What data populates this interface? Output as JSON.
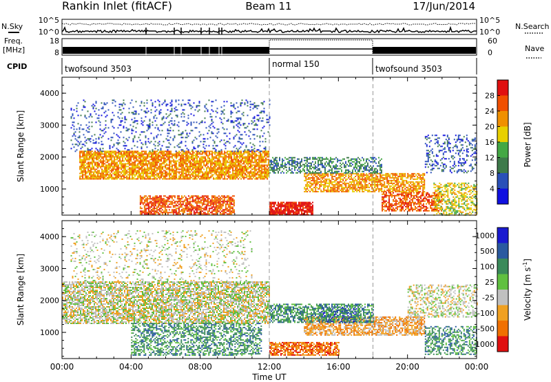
{
  "header": {
    "station": "Rankin Inlet (fitACF)",
    "beam": "Beam 11",
    "date": "17/Jun/2014"
  },
  "aux_panels": {
    "nsky": {
      "label": "N.Sky",
      "left_ticks": [
        "10^5",
        "10^0"
      ],
      "right_label": "N.Search",
      "right_ticks": [
        "10^5",
        "10^0"
      ]
    },
    "freq": {
      "label_lines": [
        "Freq.",
        "[MHz]"
      ],
      "left_ticks": [
        "18",
        "8"
      ],
      "right_label": "Nave",
      "right_ticks": [
        "60",
        "0"
      ]
    },
    "cpid": {
      "label": "CPID",
      "segments": [
        {
          "name": "twofsound 3503",
          "start_h": 0,
          "end_h": 12
        },
        {
          "name": "normal 150",
          "start_h": 12,
          "end_h": 18
        },
        {
          "name": "twofsound 3503",
          "start_h": 18,
          "end_h": 24
        }
      ]
    }
  },
  "colorbars": {
    "power": {
      "title": "Power [dB]",
      "ticks": [
        "4",
        "8",
        "12",
        "16",
        "20",
        "24",
        "28"
      ],
      "colors": [
        "#1010e0",
        "#2a50b8",
        "#3e7a4a",
        "#44a844",
        "#e8d000",
        "#f09000",
        "#f05000",
        "#e01010"
      ]
    },
    "velocity": {
      "title": "Velocity [m s",
      "title_sup": "-1",
      "title_end": "]",
      "ticks": [
        "1000",
        "500",
        "100",
        "25",
        "-25",
        "-100",
        "-500",
        "-1000"
      ],
      "colors": [
        "#1a1ad0",
        "#2a5aa0",
        "#3a8a5a",
        "#60c040",
        "#c0c0c0",
        "#f0a020",
        "#f07000",
        "#e01010"
      ]
    }
  },
  "chart_data": [
    {
      "type": "heatmap",
      "name": "Power",
      "ylabel": "Slant Range [km]",
      "yticks": [
        1000,
        2000,
        3000,
        4000
      ],
      "ylim": [
        180,
        4500
      ],
      "xlim": [
        0,
        24
      ],
      "xticks": [
        "00:00",
        "04:00",
        "08:00",
        "12:00",
        "16:00",
        "20:00",
        "00:00"
      ],
      "dashed_markers_h": [
        12,
        18
      ],
      "scatter_regions": [
        {
          "x0": 1.0,
          "x1": 12.0,
          "y0": 1300,
          "y1": 2200,
          "level": 5,
          "density": 0.8
        },
        {
          "x0": 4.5,
          "x1": 10.0,
          "y0": 200,
          "y1": 800,
          "level": 6,
          "density": 0.7
        },
        {
          "x0": 12.0,
          "x1": 14.5,
          "y0": 200,
          "y1": 600,
          "level": 7,
          "density": 0.85
        },
        {
          "x0": 14.0,
          "x1": 21.0,
          "y0": 900,
          "y1": 1500,
          "level": 5,
          "density": 0.7
        },
        {
          "x0": 18.5,
          "x1": 22.0,
          "y0": 300,
          "y1": 900,
          "level": 6,
          "density": 0.6
        },
        {
          "x0": 0.5,
          "x1": 12.0,
          "y0": 2200,
          "y1": 3800,
          "level": 1,
          "density": 0.15
        },
        {
          "x0": 12.0,
          "x1": 18.5,
          "y0": 1500,
          "y1": 2000,
          "level": 2,
          "density": 0.5
        },
        {
          "x0": 21.5,
          "x1": 24.0,
          "y0": 200,
          "y1": 1200,
          "level": 4,
          "density": 0.5
        },
        {
          "x0": 21.0,
          "x1": 24.0,
          "y0": 1500,
          "y1": 2700,
          "level": 1,
          "density": 0.25
        }
      ]
    },
    {
      "type": "heatmap",
      "name": "Velocity",
      "ylabel": "Slant Range [km]",
      "yticks": [
        1000,
        2000,
        3000,
        4000
      ],
      "ylim": [
        180,
        4500
      ],
      "xlim": [
        0,
        24
      ],
      "xticks": [
        "00:00",
        "04:00",
        "08:00",
        "12:00",
        "16:00",
        "20:00",
        "00:00"
      ],
      "xlabel": "Time UT",
      "dashed_markers_h": [
        12,
        18
      ],
      "scatter_regions": [
        {
          "x0": 0.0,
          "x1": 12.0,
          "y0": 1300,
          "y1": 2600,
          "level": 4,
          "density": 0.7
        },
        {
          "x0": 4.0,
          "x1": 11.5,
          "y0": 300,
          "y1": 1300,
          "level": 2,
          "density": 0.5
        },
        {
          "x0": 12.0,
          "x1": 16.0,
          "y0": 300,
          "y1": 700,
          "level": 6,
          "density": 0.75
        },
        {
          "x0": 14.0,
          "x1": 21.0,
          "y0": 900,
          "y1": 1500,
          "level": 5,
          "density": 0.7
        },
        {
          "x0": 15.0,
          "x1": 17.0,
          "y0": 1300,
          "y1": 1800,
          "level": 0,
          "density": 0.4
        },
        {
          "x0": 12.0,
          "x1": 18.0,
          "y0": 1300,
          "y1": 1900,
          "level": 2,
          "density": 0.6
        },
        {
          "x0": 0.5,
          "x1": 11.0,
          "y0": 2600,
          "y1": 4200,
          "level": 4,
          "density": 0.15
        },
        {
          "x0": 21.0,
          "x1": 24.0,
          "y0": 300,
          "y1": 1200,
          "level": 2,
          "density": 0.5
        },
        {
          "x0": 20.0,
          "x1": 24.0,
          "y0": 1500,
          "y1": 2500,
          "level": 4,
          "density": 0.4
        }
      ]
    }
  ]
}
